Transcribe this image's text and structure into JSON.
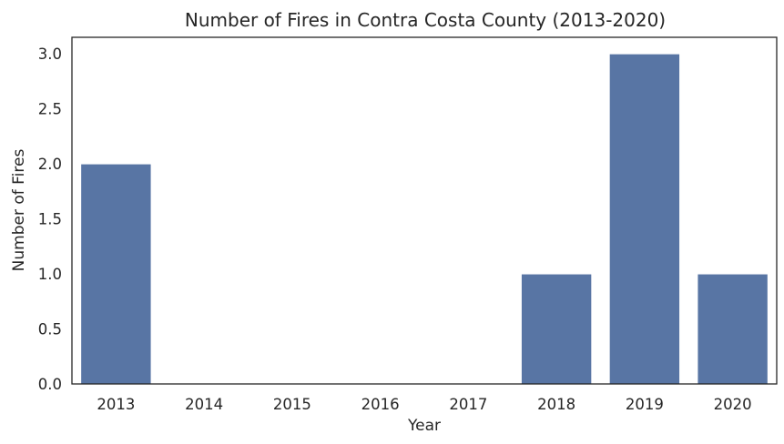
{
  "chart_data": {
    "type": "bar",
    "title": "Number of Fires in Contra Costa County (2013-2020)",
    "xlabel": "Year",
    "ylabel": "Number of Fires",
    "categories": [
      "2013",
      "2014",
      "2015",
      "2016",
      "2017",
      "2018",
      "2019",
      "2020"
    ],
    "values": [
      2,
      0,
      0,
      0,
      0,
      1,
      3,
      1
    ],
    "ylim": [
      0,
      3.15
    ],
    "yticks": [
      "0.0",
      "0.5",
      "1.0",
      "1.5",
      "2.0",
      "2.5",
      "3.0"
    ],
    "grid": false,
    "legend": "none",
    "bar_color": "#5875a4",
    "bar_edge_color": "#ffffff",
    "axis_color": "#262626"
  }
}
